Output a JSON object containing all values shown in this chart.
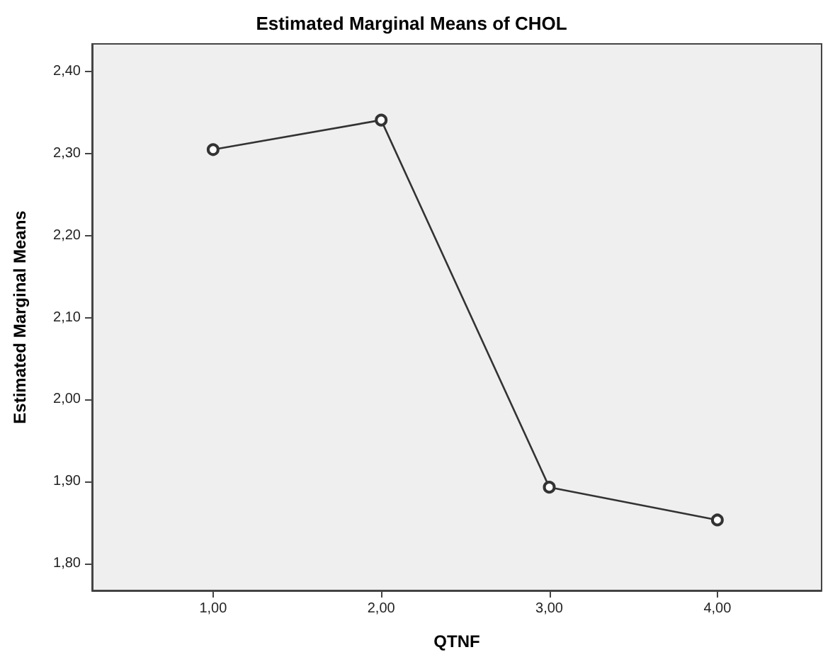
{
  "chart_data": {
    "type": "line",
    "title": "Estimated Marginal Means of CHOL",
    "xlabel": "QTNF",
    "ylabel": "Estimated Marginal Means",
    "x": [
      1,
      2,
      3,
      4
    ],
    "series": [
      {
        "color": "#333333",
        "values": [
          2.305,
          2.341,
          1.893,
          1.853
        ]
      }
    ],
    "xlim": [
      0.28,
      4.62
    ],
    "xticks": [
      {
        "value": 1,
        "label": "1,00"
      },
      {
        "value": 2,
        "label": "2,00"
      },
      {
        "value": 3,
        "label": "3,00"
      },
      {
        "value": 4,
        "label": "4,00"
      }
    ],
    "ylim": [
      1.767,
      2.434
    ],
    "yticks": [
      {
        "value": 1.8,
        "label": "1,80"
      },
      {
        "value": 1.9,
        "label": "1,90"
      },
      {
        "value": 2.0,
        "label": "2,00"
      },
      {
        "value": 2.1,
        "label": "2,10"
      },
      {
        "value": 2.2,
        "label": "2,20"
      },
      {
        "value": 2.3,
        "label": "2,30"
      },
      {
        "value": 2.4,
        "label": "2,40"
      }
    ],
    "marker": "circle",
    "line_style": "solid",
    "grid": false
  }
}
